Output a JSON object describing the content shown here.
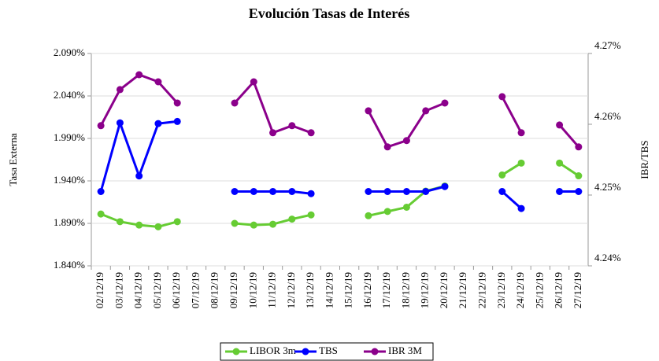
{
  "chart_data": {
    "type": "line",
    "title": "Evolución Tasas de Interés",
    "y_label": "Tasa Externa",
    "y2_label": "IBR/TBS",
    "categories": [
      "02/12/19",
      "03/12/19",
      "04/12/19",
      "05/12/19",
      "06/12/19",
      "07/12/19",
      "08/12/19",
      "09/12/19",
      "10/12/19",
      "11/12/19",
      "12/12/19",
      "13/12/19",
      "14/12/19",
      "15/12/19",
      "16/12/19",
      "17/12/19",
      "18/12/19",
      "19/12/19",
      "20/12/19",
      "21/12/19",
      "22/12/19",
      "23/12/19",
      "24/12/19",
      "25/12/19",
      "26/12/19",
      "27/12/19"
    ],
    "series": [
      {
        "name": "LIBOR 3m",
        "color": "#66cc33",
        "axis": "y",
        "values": [
          1.901,
          1.892,
          1.888,
          1.886,
          1.892,
          null,
          null,
          1.89,
          1.888,
          1.889,
          1.895,
          1.9,
          null,
          null,
          1.899,
          1.904,
          1.909,
          1.928,
          1.934,
          null,
          null,
          1.947,
          1.961,
          null,
          1.961,
          1.946
        ]
      },
      {
        "name": "TBS",
        "color": "#0000ff",
        "axis": "y2",
        "values": [
          4.2505,
          4.2602,
          4.2527,
          4.2601,
          4.2604,
          null,
          null,
          4.2505,
          4.2505,
          4.2505,
          4.2505,
          4.2502,
          null,
          null,
          4.2505,
          4.2505,
          4.2505,
          4.2505,
          4.2512,
          null,
          null,
          4.2505,
          4.2481,
          null,
          4.2505,
          4.2505
        ]
      },
      {
        "name": "IBR 3M",
        "color": "#8b008b",
        "axis": "y2",
        "values": [
          4.2598,
          4.2649,
          4.267,
          4.266,
          4.263,
          null,
          null,
          4.263,
          4.266,
          4.2588,
          4.2598,
          4.2588,
          null,
          null,
          4.2619,
          4.2568,
          4.2577,
          4.2619,
          4.263,
          null,
          null,
          4.2639,
          4.2588,
          null,
          4.2599,
          4.2568
        ]
      }
    ],
    "ylim": [
      1.84,
      2.09
    ],
    "yticks": [
      {
        "value": 1.84,
        "label": "1.840%"
      },
      {
        "value": 1.89,
        "label": "1.890%"
      },
      {
        "value": 1.94,
        "label": "1.940%"
      },
      {
        "value": 1.99,
        "label": "1.990%"
      },
      {
        "value": 2.04,
        "label": "2.040%"
      },
      {
        "value": 2.09,
        "label": "2.090%"
      }
    ],
    "y2lim": [
      4.24,
      4.27
    ],
    "y2ticks": [
      {
        "value": 4.24,
        "label": "4.24%"
      },
      {
        "value": 4.25,
        "label": "4.25%"
      },
      {
        "value": 4.26,
        "label": "4.26%"
      },
      {
        "value": 4.27,
        "label": "4.27%"
      }
    ],
    "grid": true,
    "legend": "bottom"
  }
}
